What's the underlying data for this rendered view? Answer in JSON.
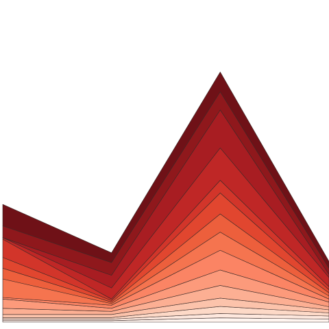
{
  "chart_data": {
    "type": "area",
    "stacked": true,
    "x": [
      0,
      1,
      2,
      3
    ],
    "xlim": [
      0,
      3
    ],
    "ylim": [
      0,
      100
    ],
    "grid": false,
    "legend": "none",
    "title": "",
    "xlabel": "",
    "ylabel": "",
    "series": [
      {
        "values": [
          0.5,
          0.5,
          1.4,
          1.0
        ],
        "color": "#fff5f0"
      },
      {
        "values": [
          0.5,
          0.5,
          1.4,
          1.0
        ],
        "color": "#fee8de"
      },
      {
        "values": [
          0.5,
          0.5,
          2.3,
          1.0
        ],
        "color": "#fdd9c7"
      },
      {
        "values": [
          1.0,
          1.0,
          2.7,
          1.0
        ],
        "color": "#fcc3ab"
      },
      {
        "values": [
          2.0,
          1.0,
          4.1,
          1.0
        ],
        "color": "#fcaf93"
      },
      {
        "values": [
          3.0,
          1.0,
          5.0,
          1.5
        ],
        "color": "#fc9a7b"
      },
      {
        "values": [
          0.5,
          1.0,
          6.4,
          1.0
        ],
        "color": "#fb8464"
      },
      {
        "values": [
          6.0,
          0.5,
          5.9,
          1.0
        ],
        "color": "#f5744f"
      },
      {
        "values": [
          3.5,
          0.5,
          5.9,
          1.0
        ],
        "color": "#ed5f3c"
      },
      {
        "values": [
          3.5,
          0.5,
          6.8,
          1.0
        ],
        "color": "#e1462f"
      },
      {
        "values": [
          5.9,
          0.5,
          4.1,
          1.0
        ],
        "color": "#d2352a"
      },
      {
        "values": [
          0.5,
          3.6,
          10.5,
          3.0
        ],
        "color": "#bf2726"
      },
      {
        "values": [
          0.0,
          4.1,
          12.3,
          1.0
        ],
        "color": "#a81d22"
      },
      {
        "values": [
          3.8,
          4.1,
          5.9,
          2.0
        ],
        "color": "#8f181c"
      },
      {
        "values": [
          7.0,
          3.2,
          6.4,
          2.2
        ],
        "color": "#6f1117"
      }
    ]
  }
}
